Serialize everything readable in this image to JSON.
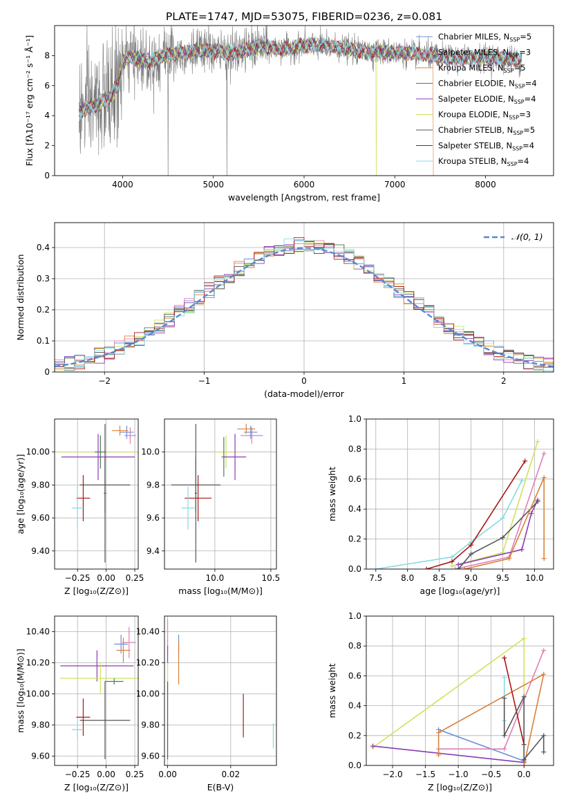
{
  "figure": {
    "title": "PLATE=1747, MJD=53075, FIBERID=0236, z=0.081"
  },
  "colors": {
    "chabrier_miles": "#6a8fd8",
    "salpeter_miles": "#e07fb5",
    "kroupa_miles": "#d8813a",
    "chabrier_elodie": "#4a7a60",
    "salpeter_elodie": "#8a3ab0",
    "kroupa_elodie": "#cde35a",
    "chabrier_stelib": "#555555",
    "salpeter_stelib": "#a81515",
    "kroupa_stelib": "#85dbe0",
    "gaussian": "#5588d0"
  },
  "chart_data": [
    {
      "id": "spectrum",
      "type": "line",
      "xlabel": "wavelength [Angstrom, rest frame]",
      "ylabel": "Flux [fλ10⁻¹⁷ erg cm⁻² s⁻¹ Å⁻¹]",
      "xlim": [
        3250,
        8750
      ],
      "ylim": [
        0,
        10
      ],
      "xticks": [
        4000,
        5000,
        6000,
        7000,
        8000
      ],
      "yticks": [
        0,
        2,
        4,
        6,
        8
      ],
      "legend_position": "upper-right",
      "legend": [
        {
          "label": "Chabrier MILES, N",
          "sub": "SSP",
          "tail": "=5",
          "color": "#6a8fd8"
        },
        {
          "label": "Salpeter MILES, N",
          "sub": "SSP",
          "tail": "=3",
          "color": "#e07fb5"
        },
        {
          "label": "Kroupa MILES, N",
          "sub": "SSP",
          "tail": "=5",
          "color": "#d8813a"
        },
        {
          "label": "Chabrier ELODIE, N",
          "sub": "SSP",
          "tail": "=4",
          "color": "#4a7a60"
        },
        {
          "label": "Salpeter ELODIE, N",
          "sub": "SSP",
          "tail": "=4",
          "color": "#8a3ab0"
        },
        {
          "label": "Kroupa ELODIE, N",
          "sub": "SSP",
          "tail": "=3",
          "color": "#cde35a"
        },
        {
          "label": "Chabrier STELIB, N",
          "sub": "SSP",
          "tail": "=5",
          "color": "#555555"
        },
        {
          "label": "Salpeter STELIB, N",
          "sub": "SSP",
          "tail": "=4",
          "color": "#a81515"
        },
        {
          "label": "Kroupa STELIB, N",
          "sub": "SSP",
          "tail": "=4",
          "color": "#85dbe0"
        }
      ],
      "continuum_points": [
        [
          3520,
          4.3
        ],
        [
          3700,
          4.7
        ],
        [
          3850,
          5.2
        ],
        [
          3950,
          6.0
        ],
        [
          4000,
          7.6
        ],
        [
          4100,
          7.9
        ],
        [
          4300,
          7.6
        ],
        [
          4500,
          8.1
        ],
        [
          4800,
          8.3
        ],
        [
          5000,
          8.3
        ],
        [
          5200,
          8.1
        ],
        [
          5500,
          8.6
        ],
        [
          5800,
          8.4
        ],
        [
          6000,
          8.7
        ],
        [
          6300,
          8.6
        ],
        [
          6600,
          8.3
        ],
        [
          7000,
          8.2
        ],
        [
          7300,
          8.1
        ],
        [
          7600,
          7.8
        ],
        [
          8000,
          7.9
        ],
        [
          8400,
          7.7
        ]
      ]
    },
    {
      "id": "residuals",
      "type": "histogram",
      "xlabel": "(data-model)/error",
      "ylabel": "Normed distribution",
      "xlim": [
        -2.5,
        2.5
      ],
      "ylim": [
        0,
        0.48
      ],
      "xticks": [
        -2,
        -1,
        0,
        1,
        2
      ],
      "yticks": [
        0.0,
        0.1,
        0.2,
        0.3,
        0.4
      ],
      "grid": true,
      "legend_position": "upper-right",
      "legend_label": "𝒩(0, 1)"
    },
    {
      "id": "age_vs_Z",
      "type": "errorbar",
      "xlabel": "Z [log₁₀(Z/Z⊙)]",
      "ylabel": "age  [log₁₀(age/yr)]",
      "xlim": [
        -0.45,
        0.28
      ],
      "ylim": [
        9.29,
        10.2
      ],
      "xticks": [
        -0.25,
        0.0,
        0.25
      ],
      "yticks": [
        9.4,
        9.6,
        9.8,
        10.0
      ],
      "grid": true,
      "points": [
        {
          "x": 0.21,
          "xerr": 0.05,
          "y": 10.1,
          "yerr": 0.05,
          "color": "#e07fb5"
        },
        {
          "x": 0.18,
          "xerr": 0.06,
          "y": 10.12,
          "yerr": 0.04,
          "color": "#6a8fd8"
        },
        {
          "x": 0.12,
          "xerr": 0.07,
          "y": 10.13,
          "yerr": 0.03,
          "color": "#d8813a"
        },
        {
          "x": -0.05,
          "xerr": 0.37,
          "y": 10.0,
          "yerr": 0.1,
          "color": "#cde35a"
        },
        {
          "x": -0.05,
          "xerr": 0.05,
          "y": 10.0,
          "yerr": 0.1,
          "color": "#4a7a60"
        },
        {
          "x": -0.07,
          "xerr": 0.32,
          "y": 9.97,
          "yerr": 0.14,
          "color": "#8a3ab0"
        },
        {
          "x": -0.01,
          "xerr": 0.22,
          "y": 9.8,
          "yerr": 0.17,
          "color": "#555555"
        },
        {
          "x": -0.2,
          "xerr": 0.06,
          "y": 9.72,
          "yerr": 0.14,
          "color": "#a81515"
        },
        {
          "x": -0.25,
          "xerr": 0.05,
          "y": 9.66,
          "yerr": 0.13,
          "color": "#85dbe0"
        },
        {
          "x": -0.01,
          "xerr": 0.01,
          "y": 9.75,
          "yerr": 0.42,
          "color": "#555555"
        }
      ]
    },
    {
      "id": "age_vs_mass",
      "type": "errorbar",
      "xlabel": "mass [log₁₀(M/M⊙)]",
      "ylabel": "",
      "xlim": [
        9.55,
        10.55
      ],
      "ylim": [
        9.29,
        10.2
      ],
      "xticks": [
        10.0,
        10.5
      ],
      "yticks": [
        9.4,
        9.6,
        9.8,
        10.0
      ],
      "grid": true,
      "points": [
        {
          "x": 10.33,
          "xerr": 0.1,
          "y": 10.1,
          "yerr": 0.05,
          "color": "#e07fb5"
        },
        {
          "x": 10.32,
          "xerr": 0.06,
          "y": 10.12,
          "yerr": 0.04,
          "color": "#6a8fd8"
        },
        {
          "x": 10.28,
          "xerr": 0.08,
          "y": 10.14,
          "yerr": 0.03,
          "color": "#d8813a"
        },
        {
          "x": 10.1,
          "xerr": 0.1,
          "y": 10.0,
          "yerr": 0.1,
          "color": "#cde35a"
        },
        {
          "x": 10.08,
          "xerr": 0.02,
          "y": 9.97,
          "yerr": 0.12,
          "color": "#4a7a60"
        },
        {
          "x": 10.18,
          "xerr": 0.1,
          "y": 9.97,
          "yerr": 0.14,
          "color": "#8a3ab0"
        },
        {
          "x": 9.83,
          "xerr": 0.22,
          "y": 9.8,
          "yerr": 0.17,
          "color": "#555555"
        },
        {
          "x": 9.85,
          "xerr": 0.12,
          "y": 9.72,
          "yerr": 0.14,
          "color": "#a81515"
        },
        {
          "x": 9.76,
          "xerr": 0.06,
          "y": 9.66,
          "yerr": 0.13,
          "color": "#85dbe0"
        },
        {
          "x": 9.83,
          "xerr": 0.01,
          "y": 9.75,
          "yerr": 0.42,
          "color": "#555555"
        }
      ]
    },
    {
      "id": "mass_weight_vs_age",
      "type": "line",
      "xlabel": "age  [log₁₀(age/yr)]",
      "ylabel": "mass weight",
      "xlim": [
        7.35,
        10.3
      ],
      "ylim": [
        0,
        1.0
      ],
      "xticks": [
        7.5,
        8.0,
        8.5,
        9.0,
        9.5,
        10.0
      ],
      "yticks": [
        0.0,
        0.2,
        0.4,
        0.6,
        0.8,
        1.0
      ],
      "grid": true,
      "series": [
        {
          "color": "#85dbe0",
          "points": [
            [
              7.5,
              0.0
            ],
            [
              8.7,
              0.08
            ],
            [
              9.0,
              0.18
            ],
            [
              9.5,
              0.34
            ],
            [
              9.8,
              0.59
            ]
          ]
        },
        {
          "color": "#a81515",
          "points": [
            [
              8.3,
              0.0
            ],
            [
              8.7,
              0.05
            ],
            [
              9.0,
              0.16
            ],
            [
              9.85,
              0.72
            ]
          ]
        },
        {
          "color": "#cde35a",
          "points": [
            [
              8.7,
              0.02
            ],
            [
              9.5,
              0.11
            ],
            [
              10.05,
              0.85
            ]
          ]
        },
        {
          "color": "#e07fb5",
          "points": [
            [
              8.75,
              0.0
            ],
            [
              9.6,
              0.08
            ],
            [
              10.15,
              0.77
            ]
          ]
        },
        {
          "color": "#8a3ab0",
          "points": [
            [
              8.8,
              0.03
            ],
            [
              9.8,
              0.13
            ],
            [
              9.95,
              0.37
            ],
            [
              10.05,
              0.46
            ]
          ]
        },
        {
          "color": "#555555",
          "points": [
            [
              8.8,
              0.0
            ],
            [
              9.0,
              0.1
            ],
            [
              9.5,
              0.21
            ],
            [
              10.05,
              0.45
            ]
          ]
        },
        {
          "color": "#d8813a",
          "points": [
            [
              8.9,
              0.0
            ],
            [
              9.6,
              0.07
            ],
            [
              10.15,
              0.61
            ],
            [
              10.15,
              0.07
            ]
          ]
        }
      ]
    },
    {
      "id": "mass_vs_Z",
      "type": "errorbar",
      "xlabel": "Z [log₁₀(Z/Z⊙)]",
      "ylabel": "mass [log₁₀(M/M⊙)]",
      "xlim": [
        -0.45,
        0.28
      ],
      "ylim": [
        9.54,
        10.5
      ],
      "xticks": [
        -0.25,
        0.0,
        0.25
      ],
      "yticks": [
        9.6,
        9.8,
        10.0,
        10.2,
        10.4
      ],
      "grid": true,
      "points": [
        {
          "x": 0.2,
          "xerr": 0.06,
          "y": 10.33,
          "yerr": 0.1,
          "color": "#e07fb5"
        },
        {
          "x": 0.13,
          "xerr": 0.06,
          "y": 10.32,
          "yerr": 0.06,
          "color": "#6a8fd8"
        },
        {
          "x": 0.15,
          "xerr": 0.06,
          "y": 10.28,
          "yerr": 0.08,
          "color": "#d8813a"
        },
        {
          "x": -0.08,
          "xerr": 0.32,
          "y": 10.18,
          "yerr": 0.1,
          "color": "#8a3ab0"
        },
        {
          "x": -0.05,
          "xerr": 0.35,
          "y": 10.1,
          "yerr": 0.1,
          "color": "#cde35a"
        },
        {
          "x": 0.07,
          "xerr": 0.08,
          "y": 10.08,
          "yerr": 0.02,
          "color": "#4a7a60"
        },
        {
          "x": -0.01,
          "xerr": 0.22,
          "y": 9.83,
          "yerr": 0.25,
          "color": "#555555"
        },
        {
          "x": -0.2,
          "xerr": 0.06,
          "y": 9.85,
          "yerr": 0.12,
          "color": "#a81515"
        },
        {
          "x": -0.25,
          "xerr": 0.05,
          "y": 9.77,
          "yerr": 0.06,
          "color": "#85dbe0"
        }
      ]
    },
    {
      "id": "mass_vs_ebv",
      "type": "errorbar",
      "xlabel": "E(B-V)",
      "ylabel": "",
      "xlim": [
        -0.001,
        0.0345
      ],
      "ylim": [
        9.54,
        10.5
      ],
      "xticks": [
        0.0,
        0.02
      ],
      "yticks": [
        9.6,
        9.8,
        10.0,
        10.2,
        10.4
      ],
      "grid": true,
      "points": [
        {
          "x": 0.0,
          "xerr": 0.0,
          "y": 10.38,
          "yerr": 0.1,
          "color": "#e07fb5"
        },
        {
          "x": 0.0,
          "xerr": 0.0,
          "y": 10.25,
          "yerr": 0.06,
          "color": "#8a3ab0"
        },
        {
          "x": 0.0,
          "xerr": 0.0,
          "y": 10.1,
          "yerr": 0.1,
          "color": "#cde35a"
        },
        {
          "x": 0.0,
          "xerr": 0.0,
          "y": 9.83,
          "yerr": 0.25,
          "color": "#555555"
        },
        {
          "x": 0.0035,
          "xerr": 0.0,
          "y": 10.32,
          "yerr": 0.06,
          "color": "#6a8fd8"
        },
        {
          "x": 0.0035,
          "xerr": 0.0,
          "y": 10.2,
          "yerr": 0.14,
          "color": "#d8813a"
        },
        {
          "x": 0.024,
          "xerr": 0.0,
          "y": 9.86,
          "yerr": 0.14,
          "color": "#a81515"
        },
        {
          "x": 0.0335,
          "xerr": 0.0,
          "y": 9.73,
          "yerr": 0.08,
          "color": "#85dbe0"
        }
      ]
    },
    {
      "id": "mass_weight_vs_Z",
      "type": "line",
      "xlabel": "Z [log₁₀(Z/Z⊙)]",
      "ylabel": "mass weight",
      "xlim": [
        -2.4,
        0.45
      ],
      "ylim": [
        0,
        1.0
      ],
      "xticks": [
        -2.0,
        -1.5,
        -1.0,
        -0.5,
        0.0
      ],
      "yticks": [
        0.0,
        0.2,
        0.4,
        0.6,
        0.8,
        1.0
      ],
      "grid": true,
      "series": [
        {
          "color": "#cde35a",
          "points": [
            [
              -2.3,
              0.12
            ],
            [
              0.0,
              0.85
            ],
            [
              0.0,
              0.0
            ]
          ]
        },
        {
          "color": "#6a8fd8",
          "points": [
            [
              -1.3,
              0.24
            ],
            [
              0.0,
              0.03
            ]
          ]
        },
        {
          "color": "#e07fb5",
          "points": [
            [
              -1.3,
              0.11
            ],
            [
              -0.3,
              0.11
            ],
            [
              0.3,
              0.77
            ]
          ]
        },
        {
          "color": "#8a3ab0",
          "points": [
            [
              -2.3,
              0.13
            ],
            [
              0.0,
              0.02
            ]
          ]
        },
        {
          "color": "#d8813a",
          "points": [
            [
              -1.3,
              0.07
            ],
            [
              -1.3,
              0.22
            ],
            [
              0.3,
              0.61
            ],
            [
              0.0,
              0.0
            ]
          ]
        },
        {
          "color": "#a81515",
          "points": [
            [
              -0.3,
              0.72
            ],
            [
              0.0,
              0.14
            ]
          ]
        },
        {
          "color": "#85dbe0",
          "points": [
            [
              -0.3,
              0.59
            ],
            [
              -0.3,
              0.3
            ]
          ]
        },
        {
          "color": "#555555",
          "points": [
            [
              -0.3,
              0.45
            ],
            [
              -0.3,
              0.2
            ],
            [
              0.0,
              0.46
            ],
            [
              0.0,
              0.04
            ],
            [
              0.3,
              0.2
            ],
            [
              0.3,
              0.09
            ]
          ]
        }
      ]
    }
  ]
}
